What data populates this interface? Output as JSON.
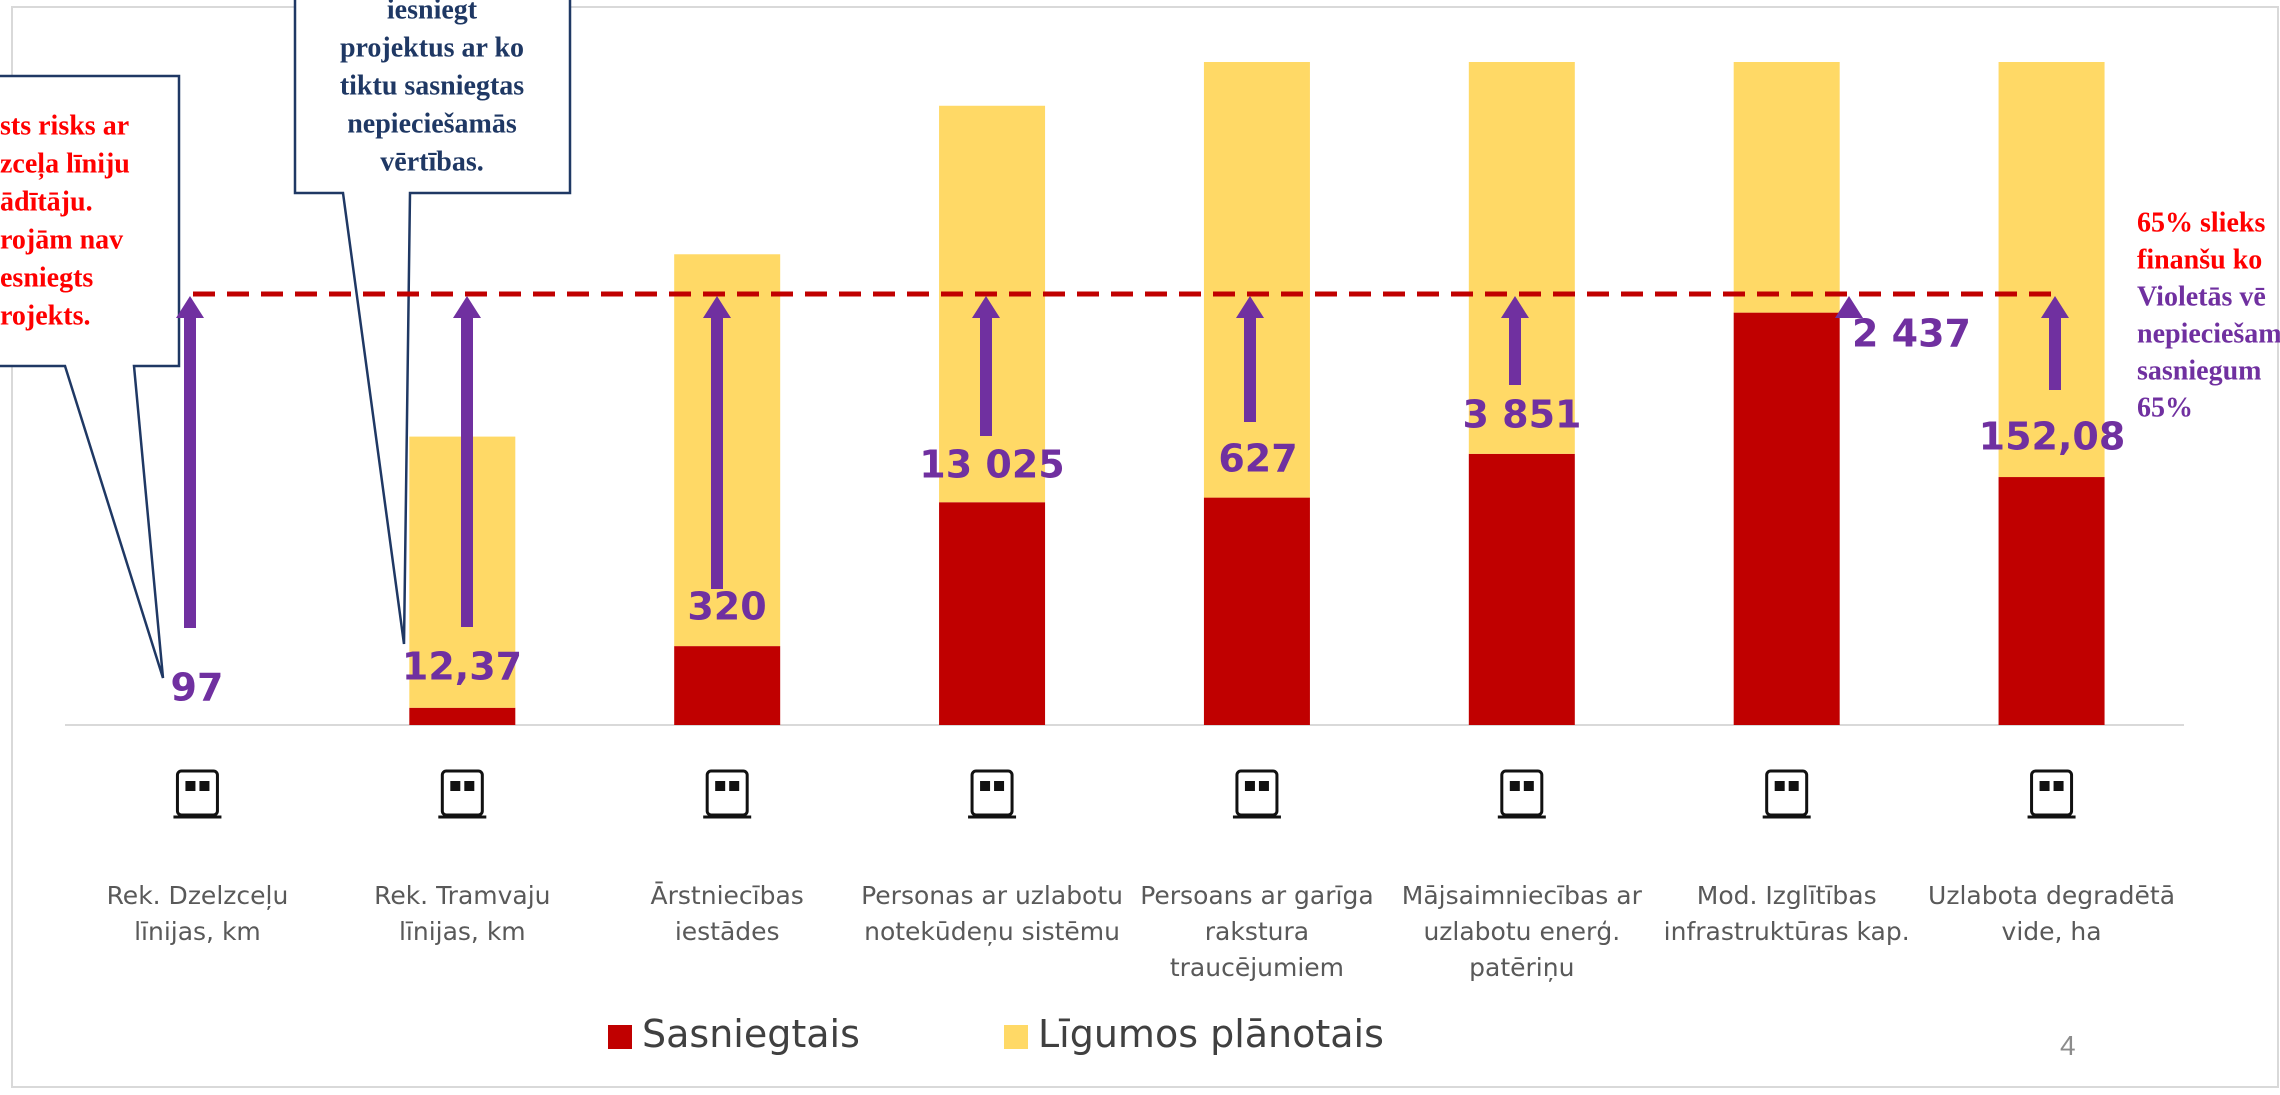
{
  "chart_data": {
    "type": "stacked_bar",
    "categories": [
      "Rek. Dzelzceļu līnijas, km",
      "Rek. Tramvaju līnijas, km",
      "Ārstniecības iestādes",
      "Personas ar uzlabotu notekūdeņu sistēmu",
      "Persoans ar garīga rakstura traucējumiem",
      "Mājsaimniecības ar uzlabotu enerģ. patēriņu",
      "Mod. Izglītības infrastruktūras kap.",
      "Uzlabota degradētā vide, ha"
    ],
    "series": [
      {
        "name": "Sasniegtais",
        "color": "#c00000",
        "values": [
          0,
          2.6,
          11.9,
          33.6,
          34.3,
          40.9,
          62.2,
          37.4
        ]
      },
      {
        "name": "Līgumos plānotais",
        "color": "#ffd966",
        "values": [
          0,
          40.9,
          59.1,
          59.8,
          65.7,
          59.1,
          37.8,
          62.6
        ]
      }
    ],
    "ylim": [
      0,
      100
    ],
    "threshold": 65,
    "gap_labels": [
      "97",
      "12,37",
      "320",
      "13 025",
      "627",
      "3 851",
      "2 437",
      "152,08"
    ],
    "callout_left": [
      "sts risks ar",
      "zceļa līniju",
      "ādītāju.",
      "rojām nav",
      "esniegts",
      "rojekts."
    ],
    "callout_middle": [
      "iesniegt",
      "projektus ar ko",
      "tiktu sasniegtas",
      "nepieciešamās",
      "vērtības."
    ],
    "note_right": [
      "65% slieks",
      "finanšu ko",
      "Violetās vē",
      "nepieciešam",
      "sasniegum",
      "65%"
    ],
    "page_number": "4"
  }
}
